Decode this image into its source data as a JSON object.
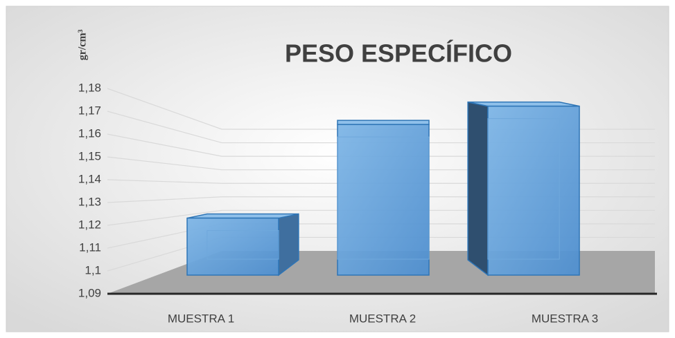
{
  "chart_data": {
    "type": "bar3d",
    "title": "PESO ESPECÍFICO",
    "y_label": "gr/cm³",
    "categories": [
      "MUESTRA 1",
      "MUESTRA 2",
      "MUESTRA 3"
    ],
    "values": [
      1.118,
      1.164,
      1.173
    ],
    "color": "#5b9bd5",
    "ylim": [
      1.09,
      1.18
    ],
    "yticks": [
      {
        "value": 1.09,
        "label": "1,09"
      },
      {
        "value": 1.1,
        "label": "1,1"
      },
      {
        "value": 1.11,
        "label": "1,11"
      },
      {
        "value": 1.12,
        "label": "1,12"
      },
      {
        "value": 1.13,
        "label": "1,13"
      },
      {
        "value": 1.14,
        "label": "1,14"
      },
      {
        "value": 1.15,
        "label": "1,15"
      },
      {
        "value": 1.16,
        "label": "1,16"
      },
      {
        "value": 1.17,
        "label": "1,17"
      },
      {
        "value": 1.18,
        "label": "1,18"
      }
    ],
    "grid": true
  }
}
